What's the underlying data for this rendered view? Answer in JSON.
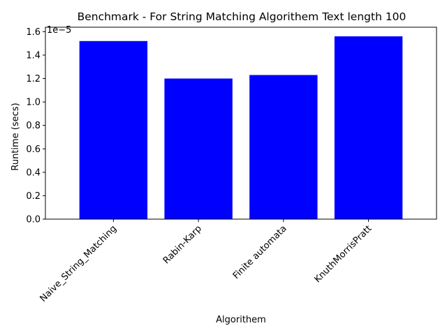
{
  "chart_data": {
    "type": "bar",
    "title": "Benchmark - For String Matching Algorithem Text length 100",
    "xlabel": "Algorithem",
    "ylabel": "Runtime (secs)",
    "y_scale_label": "1e−5",
    "y_scale_factor": 1e-05,
    "categories": [
      "Naive_String_Matching",
      "Rabin-Karp",
      "Finite automata",
      "KnuthMorrisPratt"
    ],
    "values": [
      1.52e-05,
      1.2e-05,
      1.23e-05,
      1.56e-05
    ],
    "y_ticks": [
      0.0,
      0.2,
      0.4,
      0.6,
      0.8,
      1.0,
      1.2,
      1.4,
      1.6
    ],
    "y_tick_labels": [
      "0.0",
      "0.2",
      "0.4",
      "0.6",
      "0.8",
      "1.0",
      "1.2",
      "1.4",
      "1.6"
    ],
    "ylim": [
      0,
      1.638e-05
    ],
    "bar_color": "#0000ff",
    "x_tick_rotation_deg": -45,
    "grid": false,
    "legend": "none"
  }
}
